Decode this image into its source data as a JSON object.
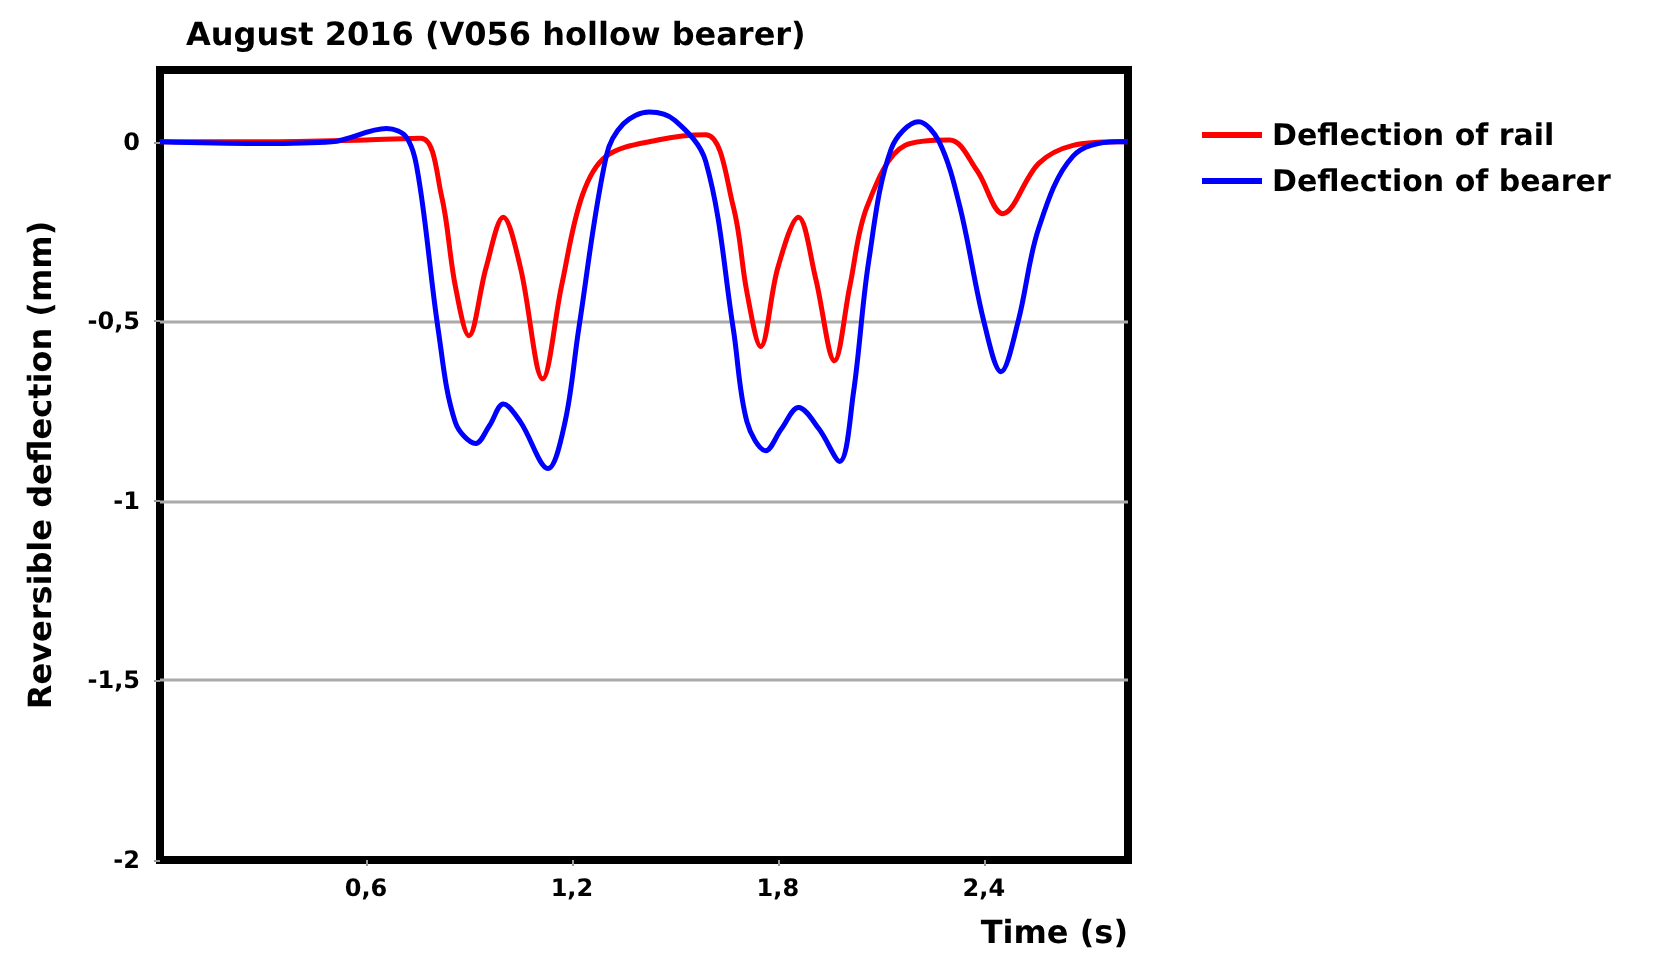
{
  "chart_data": {
    "type": "line",
    "title": "August 2016 (V056 hollow bearer)",
    "xlabel": "Time (s)",
    "ylabel": "Reversible deflection (mm)",
    "xlim": [
      0,
      2.82
    ],
    "ylim": [
      -2,
      0.2
    ],
    "xticks": [
      {
        "value": 0.6,
        "label": "0,6"
      },
      {
        "value": 1.2,
        "label": "1,2"
      },
      {
        "value": 1.8,
        "label": "1,8"
      },
      {
        "value": 2.4,
        "label": "2,4"
      }
    ],
    "yticks": [
      {
        "value": 0,
        "label": "0"
      },
      {
        "value": -0.5,
        "label": "-0,5"
      },
      {
        "value": -1,
        "label": "-1"
      },
      {
        "value": -1.5,
        "label": "-1,5"
      },
      {
        "value": -2,
        "label": "-2"
      }
    ],
    "grid": "y",
    "legend": "right",
    "series": [
      {
        "name": "Deflection of rail",
        "color": "#ff0000",
        "x": [
          0,
          0.3,
          0.6,
          0.76,
          0.82,
          0.86,
          0.9,
          0.95,
          1.0,
          1.05,
          1.115,
          1.17,
          1.23,
          1.3,
          1.45,
          1.59,
          1.67,
          1.71,
          1.75,
          1.8,
          1.86,
          1.91,
          1.965,
          2.01,
          2.06,
          2.17,
          2.3,
          2.38,
          2.455,
          2.56,
          2.66,
          2.79,
          2.82
        ],
        "values": [
          0,
          0,
          0.005,
          0.01,
          -0.15,
          -0.4,
          -0.54,
          -0.35,
          -0.21,
          -0.35,
          -0.66,
          -0.4,
          -0.15,
          -0.04,
          0.005,
          0.02,
          -0.18,
          -0.42,
          -0.57,
          -0.35,
          -0.21,
          -0.38,
          -0.61,
          -0.4,
          -0.18,
          -0.01,
          0.005,
          -0.08,
          -0.2,
          -0.06,
          -0.01,
          0,
          0
        ]
      },
      {
        "name": "Deflection of bearer",
        "color": "#0000ff",
        "x": [
          0,
          0.3,
          0.5,
          0.66,
          0.72,
          0.755,
          0.81,
          0.86,
          0.92,
          0.96,
          1.0,
          1.05,
          1.13,
          1.18,
          1.22,
          1.3,
          1.35,
          1.425,
          1.5,
          1.59,
          1.67,
          1.71,
          1.765,
          1.81,
          1.86,
          1.92,
          1.98,
          2.02,
          2.065,
          2.13,
          2.21,
          2.27,
          2.33,
          2.4,
          2.45,
          2.5,
          2.56,
          2.66,
          2.79,
          2.82
        ],
        "values": [
          0,
          -0.005,
          0,
          0.037,
          0.01,
          -0.11,
          -0.52,
          -0.78,
          -0.84,
          -0.79,
          -0.73,
          -0.78,
          -0.91,
          -0.78,
          -0.52,
          -0.04,
          0.05,
          0.083,
          0.06,
          -0.055,
          -0.52,
          -0.78,
          -0.86,
          -0.8,
          -0.74,
          -0.8,
          -0.89,
          -0.7,
          -0.33,
          -0.02,
          0.056,
          0,
          -0.18,
          -0.5,
          -0.64,
          -0.5,
          -0.24,
          -0.04,
          0,
          0
        ]
      }
    ]
  }
}
